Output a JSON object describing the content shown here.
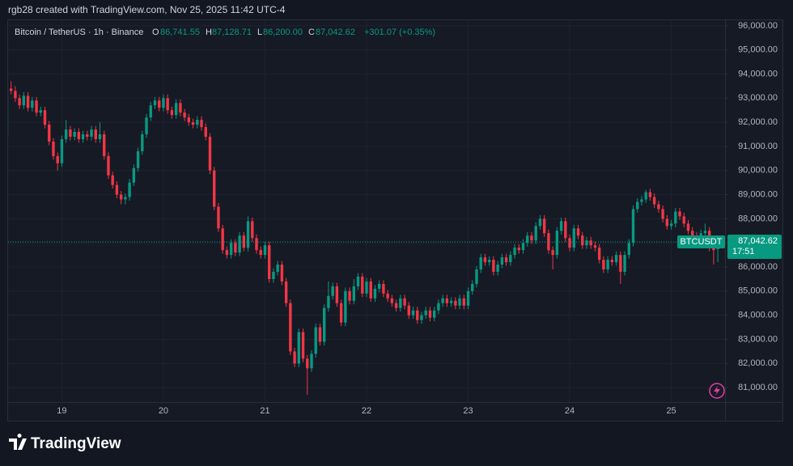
{
  "header": {
    "credit": "rgb28 created with TradingView.com, Nov 25, 2025 11:42 UTC-4"
  },
  "chart_data": {
    "type": "candlestick",
    "title": "Bitcoin / TetherUS · 1h · Binance",
    "legend": {
      "o": "O",
      "open": "86,741.55",
      "h": "H",
      "high": "87,128.71",
      "l": "L",
      "low": "86,200.00",
      "c": "C",
      "close": "87,042.62",
      "change": "+301.07 (+0.35%)"
    },
    "up_color": "#089981",
    "down_color": "#f23645",
    "open": [
      91400,
      93400,
      93300,
      93000,
      92700,
      93100,
      92600,
      92900,
      92400,
      92500,
      91900,
      91200,
      90600,
      90300,
      91300,
      91700,
      91400,
      91600,
      91300,
      91500,
      91400,
      91700,
      91300,
      91500,
      90600,
      89800,
      89400,
      89000,
      88800,
      88900,
      89500,
      90100,
      90800,
      91500,
      92200,
      92700,
      92900,
      92600,
      93000,
      92500,
      92300,
      92800,
      92400,
      92200,
      92000,
      91900,
      92100,
      91800,
      91400,
      90000,
      88500,
      87600,
      86700,
      86500,
      87000,
      86600,
      87300,
      86800,
      87900,
      87200,
      86700,
      86500,
      86900,
      85500,
      85800,
      86100,
      85400,
      84500,
      82500,
      82000,
      83300,
      82200,
      81800,
      82400,
      83500,
      82900,
      84300,
      84800,
      85200,
      84500,
      83700,
      85000,
      84600,
      85200,
      85600,
      84900,
      85400,
      84700,
      85100,
      85300,
      84900,
      84700,
      84500,
      84300,
      84700,
      84400,
      84000,
      84200,
      83800,
      84000,
      84200,
      83900,
      84200,
      84500,
      84700,
      84500,
      84600,
      84400,
      84700,
      84400,
      85000,
      85300,
      85900,
      86400,
      86200,
      86300,
      85800,
      86100,
      86400,
      86200,
      86500,
      86800,
      86700,
      87000,
      87300,
      87100,
      87700,
      88000,
      87400,
      86700,
      86500,
      87500,
      87900,
      87200,
      86800,
      87600,
      87300,
      86900,
      87100,
      86900,
      86800,
      86300,
      85900,
      86300,
      86200,
      86500,
      85800,
      86500,
      87000,
      88400,
      88700,
      88800,
      89100,
      88900,
      88600,
      88400,
      88000,
      87700,
      87800,
      88300,
      88100,
      87800,
      87500,
      87300,
      87100,
      87400,
      87500,
      86800,
      86741.55
    ],
    "high": [
      93550,
      93700,
      93500,
      93150,
      93250,
      93250,
      93050,
      93050,
      92650,
      92650,
      92050,
      91350,
      90750,
      91450,
      92100,
      91850,
      91750,
      91750,
      91650,
      91650,
      91850,
      91850,
      92000,
      91650,
      90750,
      89950,
      89550,
      89150,
      89050,
      89650,
      90250,
      90950,
      91650,
      92350,
      92850,
      93050,
      93050,
      93150,
      93150,
      92650,
      92950,
      92950,
      92550,
      92350,
      92150,
      92250,
      92250,
      91950,
      91550,
      90150,
      88650,
      87750,
      86850,
      87150,
      87150,
      87450,
      87450,
      88100,
      88050,
      87350,
      86850,
      87050,
      87050,
      85950,
      86250,
      86250,
      85550,
      84650,
      82650,
      83450,
      83450,
      82350,
      82550,
      83650,
      83650,
      84450,
      85400,
      85350,
      85350,
      84650,
      85150,
      85150,
      85500,
      85750,
      85750,
      85550,
      85550,
      85250,
      85450,
      85450,
      85050,
      84850,
      84650,
      84850,
      84850,
      84550,
      84350,
      84350,
      84150,
      84350,
      84350,
      84350,
      84650,
      84850,
      84850,
      84750,
      84750,
      84850,
      84850,
      85150,
      85450,
      86050,
      86550,
      86550,
      86450,
      86450,
      86250,
      86550,
      86550,
      86650,
      86950,
      86950,
      87150,
      87450,
      87450,
      87850,
      88150,
      88150,
      87550,
      86850,
      87650,
      88050,
      88050,
      87350,
      87750,
      87750,
      87450,
      87250,
      87250,
      87050,
      86950,
      86450,
      86450,
      86450,
      86650,
      86650,
      86650,
      87150,
      88550,
      88850,
      88950,
      89200,
      89250,
      89050,
      88750,
      88550,
      88150,
      87950,
      88450,
      88450,
      88250,
      87950,
      87650,
      87450,
      87550,
      87800,
      87650,
      86950,
      87128.71
    ],
    "low": [
      91250,
      93150,
      92850,
      92550,
      92550,
      92450,
      92450,
      92250,
      92250,
      91750,
      91050,
      90450,
      90000,
      90150,
      91150,
      91250,
      91250,
      91150,
      91150,
      91250,
      91250,
      91150,
      91150,
      90450,
      89650,
      89250,
      88850,
      88600,
      88600,
      88750,
      89350,
      89950,
      90650,
      91350,
      92050,
      92550,
      92450,
      92450,
      92350,
      92150,
      92150,
      92250,
      92050,
      91850,
      91750,
      91750,
      91650,
      91250,
      89850,
      88350,
      87450,
      86550,
      86350,
      86350,
      86450,
      86450,
      86650,
      86650,
      87050,
      86550,
      86350,
      86350,
      85350,
      85350,
      85650,
      85250,
      84350,
      82350,
      81850,
      81850,
      82050,
      80700,
      81650,
      82250,
      82750,
      82750,
      84150,
      84650,
      84350,
      83550,
      83550,
      84450,
      84450,
      85050,
      84750,
      84750,
      84550,
      84550,
      84950,
      84750,
      84550,
      84350,
      84150,
      84150,
      84250,
      83850,
      83850,
      83650,
      83650,
      83850,
      83750,
      83750,
      84050,
      84350,
      84350,
      84350,
      84250,
      84250,
      84250,
      84250,
      84850,
      85150,
      85750,
      86050,
      86050,
      85650,
      85650,
      85950,
      86050,
      86050,
      86350,
      86550,
      86550,
      86850,
      86950,
      86950,
      87550,
      87250,
      86550,
      85900,
      86350,
      87350,
      87050,
      86650,
      86650,
      87150,
      86750,
      86750,
      86750,
      86650,
      86150,
      85750,
      85750,
      86050,
      86050,
      85300,
      85650,
      86350,
      86850,
      88250,
      88550,
      88650,
      88750,
      88450,
      88250,
      87850,
      87550,
      87550,
      87650,
      87950,
      87650,
      87350,
      87150,
      86950,
      86950,
      87250,
      86650,
      86100,
      86200
    ],
    "close": [
      93400,
      93300,
      93000,
      92700,
      93100,
      92600,
      92900,
      92400,
      92500,
      91900,
      91200,
      90600,
      90300,
      91300,
      91700,
      91400,
      91600,
      91300,
      91500,
      91400,
      91700,
      91300,
      91500,
      90600,
      89800,
      89400,
      89000,
      88800,
      88900,
      89500,
      90100,
      90800,
      91500,
      92200,
      92700,
      92900,
      92600,
      93000,
      92500,
      92300,
      92800,
      92400,
      92200,
      92000,
      91900,
      92100,
      91800,
      91400,
      90000,
      88500,
      87600,
      86700,
      86500,
      87000,
      86600,
      87300,
      86800,
      87900,
      87200,
      86700,
      86500,
      86900,
      85500,
      85800,
      86100,
      85400,
      84500,
      82500,
      82000,
      83300,
      82200,
      81800,
      82400,
      83500,
      82900,
      84300,
      84800,
      85200,
      84500,
      83700,
      85000,
      84600,
      85200,
      85600,
      84900,
      85400,
      84700,
      85100,
      85300,
      84900,
      84700,
      84500,
      84300,
      84700,
      84400,
      84000,
      84200,
      83800,
      84000,
      84200,
      83900,
      84200,
      84500,
      84700,
      84500,
      84600,
      84400,
      84700,
      84400,
      85000,
      85300,
      85900,
      86400,
      86200,
      86300,
      85800,
      86100,
      86400,
      86200,
      86500,
      86800,
      86700,
      87000,
      87300,
      87100,
      87700,
      88000,
      87400,
      86700,
      86500,
      87500,
      87900,
      87200,
      86800,
      87600,
      87300,
      86900,
      87100,
      86900,
      86800,
      86300,
      85900,
      86300,
      86200,
      86500,
      85800,
      86500,
      87000,
      88400,
      88700,
      88800,
      89100,
      88900,
      88600,
      88400,
      88000,
      87700,
      87800,
      88300,
      88100,
      87800,
      87500,
      87300,
      87100,
      87400,
      87500,
      86800,
      86700,
      87042.62
    ],
    "xlim": [
      0.3,
      169.7
    ],
    "xticks": [
      {
        "value": 13,
        "label": "19"
      },
      {
        "value": 37,
        "label": "20"
      },
      {
        "value": 61,
        "label": "21"
      },
      {
        "value": 85,
        "label": "22"
      },
      {
        "value": 109,
        "label": "23"
      },
      {
        "value": 133,
        "label": "24"
      },
      {
        "value": 157,
        "label": "25"
      }
    ],
    "ylim": [
      80400,
      96230
    ],
    "yticks": [
      {
        "value": 81000,
        "label": "81,000.00"
      },
      {
        "value": 82000,
        "label": "82,000.00"
      },
      {
        "value": 83000,
        "label": "83,000.00"
      },
      {
        "value": 84000,
        "label": "84,000.00"
      },
      {
        "value": 85000,
        "label": "85,000.00"
      },
      {
        "value": 86000,
        "label": "86,000.00"
      },
      {
        "value": 87000,
        "label": "87,000.00"
      },
      {
        "value": 88000,
        "label": "88,000.00"
      },
      {
        "value": 89000,
        "label": "89,000.00"
      },
      {
        "value": 90000,
        "label": "90,000.00"
      },
      {
        "value": 91000,
        "label": "91,000.00"
      },
      {
        "value": 92000,
        "label": "92,000.00"
      },
      {
        "value": 93000,
        "label": "93,000.00"
      },
      {
        "value": 94000,
        "label": "94,000.00"
      },
      {
        "value": 95000,
        "label": "95,000.00"
      },
      {
        "value": 96000,
        "label": "96,000.00"
      }
    ],
    "grid": true,
    "price_label": {
      "symbol": "BTCUSDT",
      "price": "87,042.62",
      "countdown": "17:51"
    }
  },
  "footer": {
    "brand": "TradingView"
  }
}
